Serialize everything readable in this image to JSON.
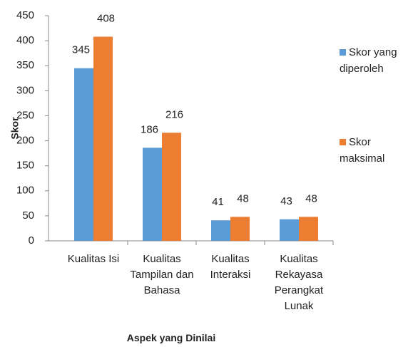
{
  "chart_data": {
    "type": "bar",
    "x_label": "Aspek yang Dinilai",
    "y_label": "Skor",
    "categories": [
      "Kualitas Isi",
      "Kualitas Tampilan dan Bahasa",
      "Kualitas Interaksi",
      "Kualitas Rekayasa Perangkat Lunak"
    ],
    "series": [
      {
        "name": "Skor yang diperoleh",
        "color": "#5b9bd5",
        "values": [
          345,
          186,
          41,
          43
        ]
      },
      {
        "name": "Skor maksimal",
        "color": "#ed7d31",
        "values": [
          408,
          216,
          48,
          48
        ]
      }
    ],
    "ylim": [
      0,
      450
    ],
    "yticks": [
      0,
      50,
      100,
      150,
      200,
      250,
      300,
      350,
      400,
      450
    ],
    "grid": false,
    "legend": "right"
  }
}
